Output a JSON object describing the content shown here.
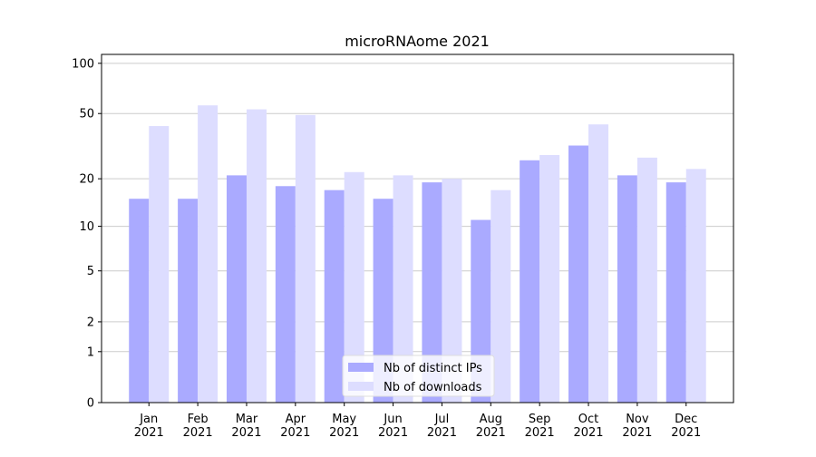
{
  "chart_data": {
    "type": "bar",
    "title": "microRNAome 2021",
    "categories": [
      [
        "Jan",
        "2021"
      ],
      [
        "Feb",
        "2021"
      ],
      [
        "Mar",
        "2021"
      ],
      [
        "Apr",
        "2021"
      ],
      [
        "May",
        "2021"
      ],
      [
        "Jun",
        "2021"
      ],
      [
        "Jul",
        "2021"
      ],
      [
        "Aug",
        "2021"
      ],
      [
        "Sep",
        "2021"
      ],
      [
        "Oct",
        "2021"
      ],
      [
        "Nov",
        "2021"
      ],
      [
        "Dec",
        "2021"
      ]
    ],
    "series": [
      {
        "name": "Nb of distinct IPs",
        "color": "#aaaaff",
        "values": [
          15,
          15,
          21,
          18,
          17,
          15,
          19,
          11,
          26,
          32,
          21,
          19
        ]
      },
      {
        "name": "Nb of downloads",
        "color": "#ddddff",
        "values": [
          42,
          56,
          53,
          49,
          22,
          21,
          20,
          17,
          28,
          43,
          27,
          23
        ]
      }
    ],
    "yscale": "log1p",
    "ylim": [
      0,
      113
    ],
    "yticks": [
      0,
      1,
      2,
      5,
      10,
      20,
      50,
      100
    ],
    "grid": true,
    "legend": "lower center"
  }
}
